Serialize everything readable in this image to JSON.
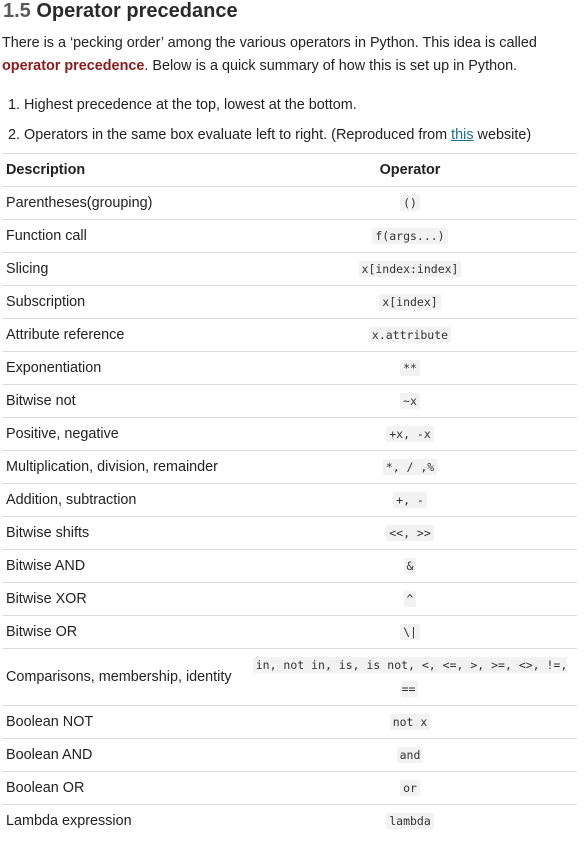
{
  "section": {
    "number": "1.5",
    "title": "Operator precedance"
  },
  "intro": {
    "before": "There is a ‘pecking order’ among the various operators in Python. This idea is called ",
    "term": "operator precedence",
    "after": ". Below is a quick summary of how this is set up in Python."
  },
  "notes": {
    "n1": "1. Highest precedence at the top, lowest at the bottom.",
    "n2_before": "2. Operators in the same box evaluate left to right. (Reproduced from ",
    "n2_link": "this",
    "n2_after": " website)"
  },
  "table": {
    "headers": {
      "description": "Description",
      "operator": "Operator"
    },
    "rows": [
      {
        "description": "Parentheses(grouping)",
        "operator": "()"
      },
      {
        "description": "Function call",
        "operator": "f(args...)"
      },
      {
        "description": "Slicing",
        "operator": "x[index:index]"
      },
      {
        "description": "Subscription",
        "operator": "x[index]"
      },
      {
        "description": "Attribute reference",
        "operator": "x.attribute"
      },
      {
        "description": "Exponentiation",
        "operator": "**"
      },
      {
        "description": "Bitwise not",
        "operator": "~x"
      },
      {
        "description": "Positive, negative",
        "operator": "+x, -x"
      },
      {
        "description": "Multiplication, division, remainder",
        "operator": "*, / ,%"
      },
      {
        "description": "Addition, subtraction",
        "operator": "+, -"
      },
      {
        "description": "Bitwise shifts",
        "operator": "<<, >>"
      },
      {
        "description": "Bitwise AND",
        "operator": "&"
      },
      {
        "description": "Bitwise XOR",
        "operator": "^"
      },
      {
        "description": "Bitwise OR",
        "operator": "\\|"
      },
      {
        "description": "Comparisons, membership, identity",
        "operator": "in, not in, is, is not, <, <=, >, >=, <>, !=, =="
      },
      {
        "description": "Boolean NOT",
        "operator": "not x"
      },
      {
        "description": "Boolean AND",
        "operator": "and"
      },
      {
        "description": "Boolean OR",
        "operator": "or"
      },
      {
        "description": "Lambda expression",
        "operator": "lambda"
      }
    ]
  }
}
